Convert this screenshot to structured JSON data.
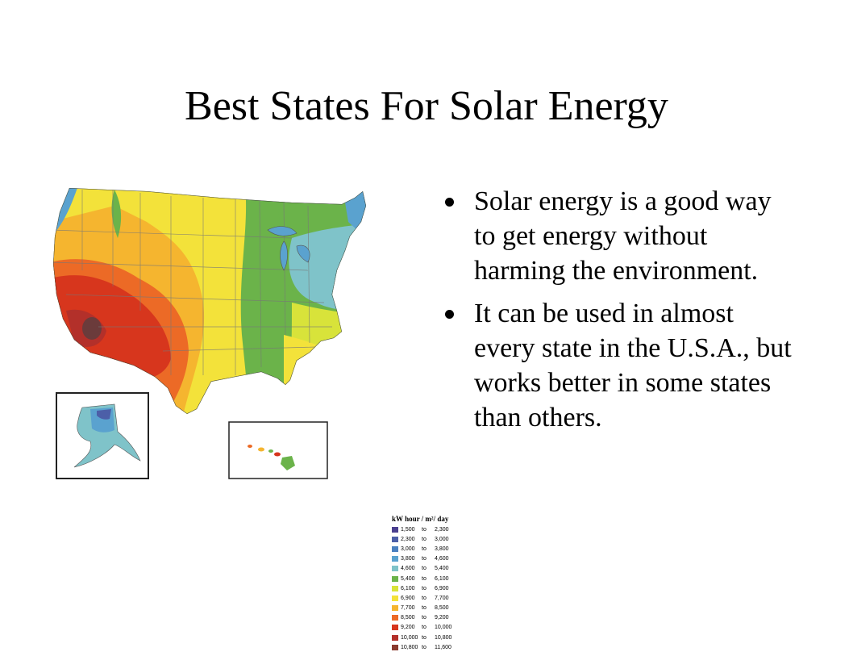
{
  "slide": {
    "title": "Best States For Solar Energy",
    "bullets": [
      "Solar energy is a good way to get energy without harming the environment.",
      "It can be used in almost every state in the U.S.A., but works better in some states than others."
    ]
  },
  "map": {
    "legend": {
      "title": "kW hour / m²/ day",
      "to_word": "to",
      "ranges": [
        {
          "from": "1,500",
          "to": "2,300",
          "color": "#4a3f8f"
        },
        {
          "from": "2,300",
          "to": "3,000",
          "color": "#4c5fa8"
        },
        {
          "from": "3,000",
          "to": "3,800",
          "color": "#4a80c0"
        },
        {
          "from": "3,800",
          "to": "4,600",
          "color": "#5aa2cf"
        },
        {
          "from": "4,600",
          "to": "5,400",
          "color": "#7fc3c9"
        },
        {
          "from": "5,400",
          "to": "6,100",
          "color": "#6bb34a"
        },
        {
          "from": "6,100",
          "to": "6,900",
          "color": "#d8e33a"
        },
        {
          "from": "6,900",
          "to": "7,700",
          "color": "#f3e23a"
        },
        {
          "from": "7,700",
          "to": "8,500",
          "color": "#f5b52f"
        },
        {
          "from": "8,500",
          "to": "9,200",
          "color": "#ec6a26"
        },
        {
          "from": "9,200",
          "to": "10,000",
          "color": "#d7361d"
        },
        {
          "from": "10,000",
          "to": "10,800",
          "color": "#b3302a"
        },
        {
          "from": "10,800",
          "to": "11,600",
          "color": "#8a3a2e"
        }
      ]
    }
  }
}
